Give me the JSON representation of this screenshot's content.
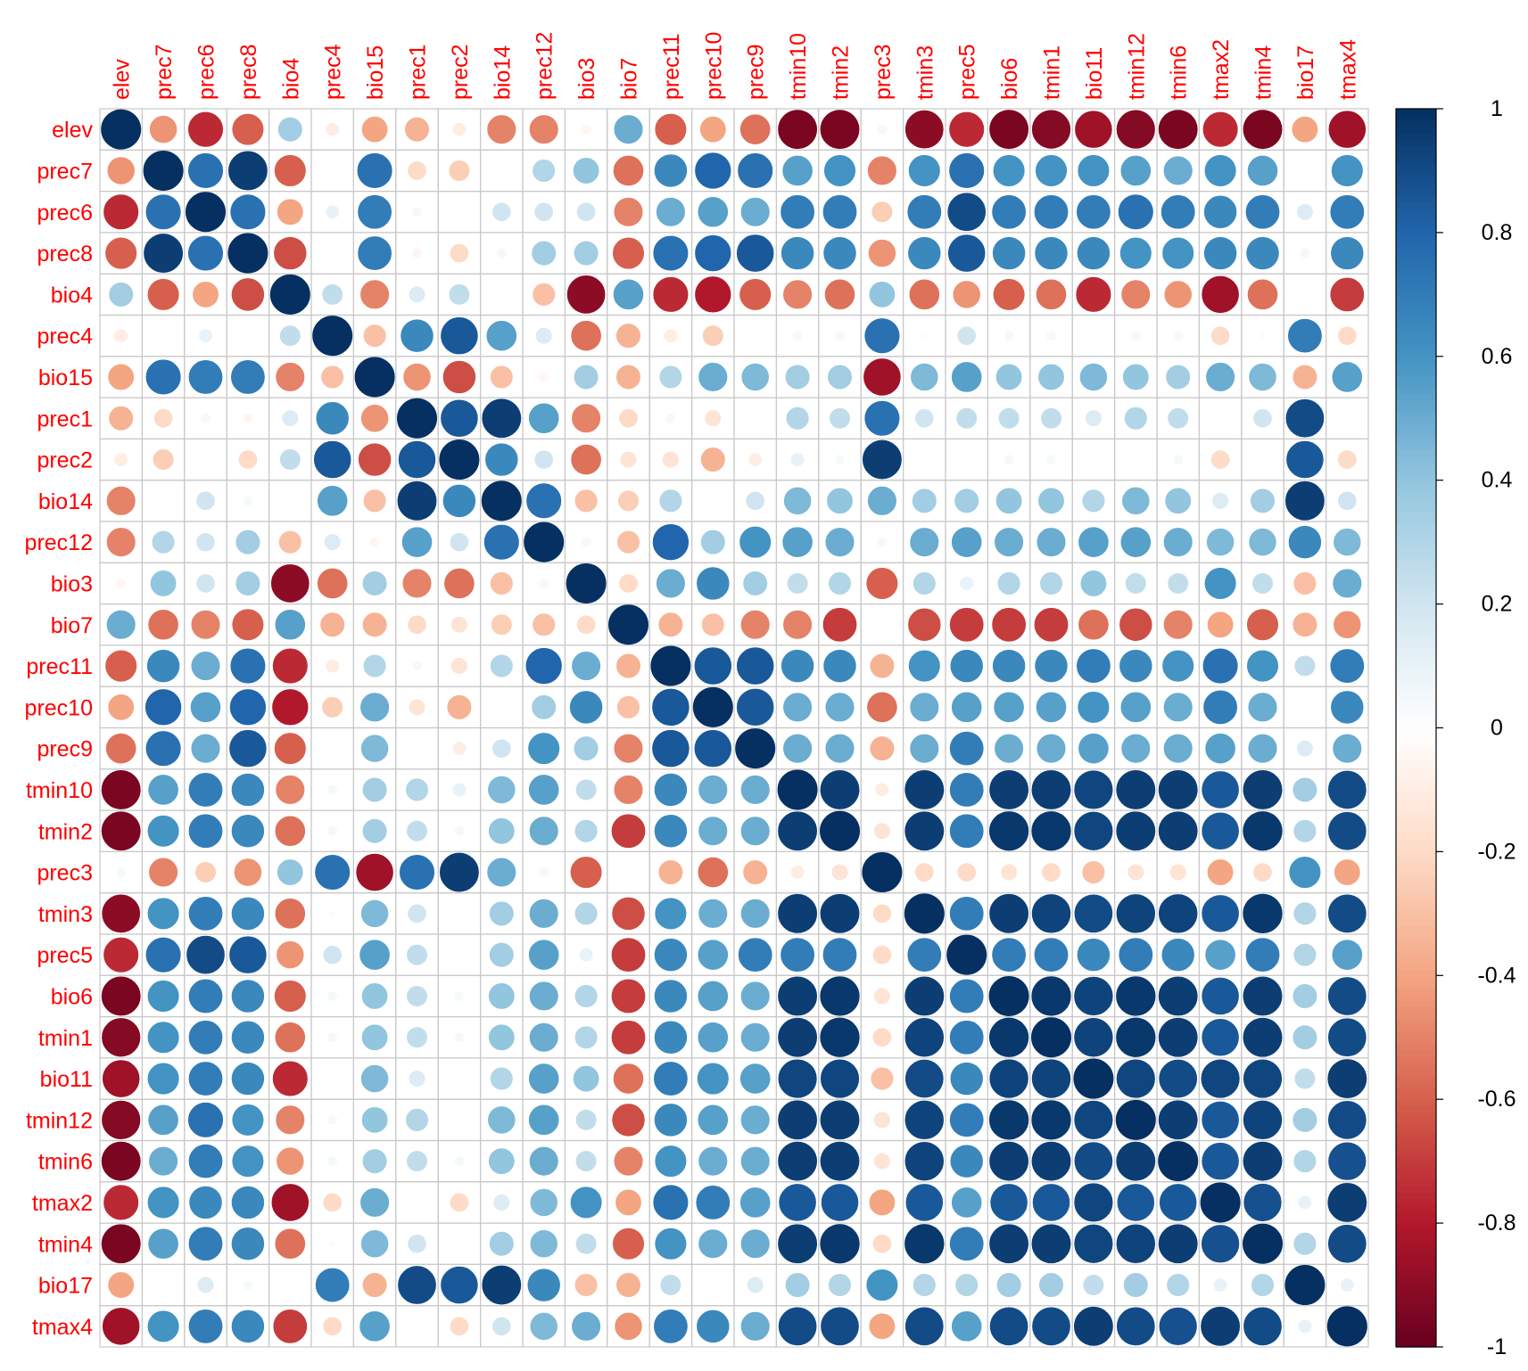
{
  "chart_data": {
    "type": "correlation",
    "variables": [
      "elev",
      "prec7",
      "prec6",
      "prec8",
      "bio4",
      "prec4",
      "bio15",
      "prec1",
      "prec2",
      "bio14",
      "prec12",
      "bio3",
      "bio7",
      "prec11",
      "prec10",
      "prec9",
      "tmin10",
      "tmin2",
      "prec3",
      "tmin3",
      "prec5",
      "bio6",
      "tmin1",
      "bio11",
      "tmin12",
      "tmin6",
      "tmax2",
      "tmin4",
      "bio17",
      "tmax4"
    ],
    "matrix": [
      [
        1,
        -0.45,
        -0.75,
        -0.6,
        0.35,
        -0.1,
        -0.4,
        -0.35,
        -0.1,
        -0.5,
        -0.5,
        -0.05,
        0.5,
        -0.6,
        -0.4,
        -0.55,
        -0.95,
        -0.95,
        0.05,
        -0.9,
        -0.75,
        -0.95,
        -0.92,
        -0.85,
        -0.92,
        -0.95,
        -0.75,
        -0.95,
        -0.4,
        -0.85
      ],
      [
        -0.45,
        1,
        0.75,
        0.95,
        -0.6,
        0,
        0.75,
        -0.2,
        -0.25,
        0,
        0.3,
        0.4,
        -0.55,
        0.65,
        0.8,
        0.75,
        0.55,
        0.6,
        -0.5,
        0.6,
        0.75,
        0.6,
        0.6,
        0.6,
        0.55,
        0.5,
        0.6,
        0.55,
        0,
        0.6
      ],
      [
        -0.75,
        0.75,
        1,
        0.75,
        -0.4,
        0.1,
        0.7,
        0.05,
        0,
        0.2,
        0.2,
        0.2,
        -0.5,
        0.5,
        0.55,
        0.5,
        0.7,
        0.7,
        -0.25,
        0.7,
        0.9,
        0.7,
        0.7,
        0.7,
        0.75,
        0.7,
        0.65,
        0.7,
        0.15,
        0.7
      ],
      [
        -0.6,
        0.95,
        0.75,
        1,
        -0.65,
        0,
        0.7,
        -0.05,
        -0.2,
        0.05,
        0.35,
        0.35,
        -0.6,
        0.75,
        0.8,
        0.85,
        0.65,
        0.65,
        -0.45,
        0.65,
        0.85,
        0.65,
        0.65,
        0.65,
        0.6,
        0.6,
        0.65,
        0.65,
        0.05,
        0.65
      ],
      [
        0.35,
        -0.6,
        -0.4,
        -0.65,
        1,
        0.25,
        -0.5,
        0.15,
        0.25,
        0,
        -0.3,
        -0.9,
        0.55,
        -0.75,
        -0.8,
        -0.6,
        -0.5,
        -0.55,
        0.4,
        -0.55,
        -0.45,
        -0.6,
        -0.55,
        -0.75,
        -0.5,
        -0.45,
        -0.85,
        -0.55,
        0,
        -0.7
      ],
      [
        -0.1,
        0,
        0.1,
        0,
        0.25,
        1,
        -0.3,
        0.65,
        0.85,
        0.55,
        0.15,
        -0.55,
        -0.35,
        -0.1,
        -0.25,
        0,
        0.05,
        0.05,
        0.75,
        0.02,
        0.2,
        0.05,
        0.05,
        0,
        0.05,
        0.05,
        -0.2,
        0.02,
        0.7,
        -0.2
      ],
      [
        -0.4,
        0.75,
        0.7,
        0.7,
        -0.5,
        -0.3,
        1,
        -0.45,
        -0.65,
        -0.3,
        -0.05,
        0.35,
        -0.35,
        0.3,
        0.5,
        0.45,
        0.35,
        0.35,
        -0.85,
        0.45,
        0.55,
        0.4,
        0.4,
        0.45,
        0.4,
        0.35,
        0.5,
        0.45,
        -0.35,
        0.55
      ],
      [
        -0.35,
        -0.2,
        0.05,
        -0.05,
        0.15,
        0.65,
        -0.45,
        1,
        0.85,
        0.95,
        0.55,
        -0.5,
        -0.2,
        0.05,
        -0.15,
        0,
        0.3,
        0.25,
        0.75,
        0.2,
        0.25,
        0.25,
        0.25,
        0.15,
        0.3,
        0.25,
        0,
        0.2,
        0.9,
        0
      ],
      [
        -0.1,
        -0.25,
        0,
        -0.2,
        0.25,
        0.85,
        -0.65,
        0.85,
        1,
        0.65,
        0.2,
        -0.55,
        -0.15,
        -0.15,
        -0.35,
        -0.1,
        0.1,
        0.05,
        0.95,
        0,
        0,
        0.05,
        0.05,
        0,
        0,
        0.05,
        -0.2,
        0,
        0.85,
        -0.2
      ],
      [
        -0.5,
        0,
        0.2,
        0.05,
        0,
        0.55,
        -0.3,
        0.95,
        0.65,
        1,
        0.75,
        -0.3,
        -0.25,
        0.3,
        0,
        0.2,
        0.45,
        0.4,
        0.5,
        0.35,
        0.35,
        0.4,
        0.4,
        0.3,
        0.45,
        0.4,
        0.15,
        0.35,
        0.95,
        0.2
      ],
      [
        -0.5,
        0.3,
        0.2,
        0.35,
        -0.3,
        0.15,
        -0.05,
        0.55,
        0.2,
        0.75,
        1,
        0.05,
        -0.3,
        0.8,
        0.35,
        0.6,
        0.55,
        0.5,
        0.05,
        0.5,
        0.55,
        0.5,
        0.5,
        0.55,
        0.55,
        0.5,
        0.45,
        0.45,
        0.65,
        0.45
      ],
      [
        -0.05,
        0.4,
        0.2,
        0.35,
        -0.9,
        -0.55,
        0.35,
        -0.5,
        -0.55,
        -0.3,
        0.05,
        1,
        -0.2,
        0.5,
        0.65,
        0.35,
        0.25,
        0.3,
        -0.6,
        0.3,
        0.1,
        0.3,
        0.3,
        0.4,
        0.25,
        0.25,
        0.6,
        0.25,
        -0.3,
        0.5
      ],
      [
        0.5,
        -0.55,
        -0.5,
        -0.6,
        0.55,
        -0.35,
        -0.35,
        -0.2,
        -0.15,
        -0.25,
        -0.3,
        -0.2,
        1,
        -0.35,
        -0.3,
        -0.5,
        -0.5,
        -0.7,
        0,
        -0.65,
        -0.7,
        -0.7,
        -0.7,
        -0.55,
        -0.65,
        -0.5,
        -0.4,
        -0.6,
        -0.35,
        -0.45
      ],
      [
        -0.6,
        0.65,
        0.5,
        0.75,
        -0.75,
        -0.1,
        0.3,
        0.05,
        -0.15,
        0.3,
        0.8,
        0.5,
        -0.35,
        1,
        0.85,
        0.85,
        0.65,
        0.65,
        -0.35,
        0.6,
        0.65,
        0.65,
        0.65,
        0.7,
        0.65,
        0.6,
        0.75,
        0.6,
        0.25,
        0.7
      ],
      [
        -0.4,
        0.8,
        0.55,
        0.8,
        -0.8,
        -0.25,
        0.5,
        -0.15,
        -0.35,
        0,
        0.35,
        0.65,
        -0.3,
        0.85,
        1,
        0.85,
        0.5,
        0.5,
        -0.55,
        0.5,
        0.55,
        0.55,
        0.55,
        0.6,
        0.55,
        0.5,
        0.7,
        0.5,
        0,
        0.65
      ],
      [
        -0.55,
        0.75,
        0.5,
        0.85,
        -0.6,
        0,
        0.45,
        0,
        -0.1,
        0.2,
        0.6,
        0.35,
        -0.5,
        0.85,
        0.85,
        1,
        0.5,
        0.5,
        -0.35,
        0.5,
        0.7,
        0.5,
        0.5,
        0.55,
        0.5,
        0.5,
        0.55,
        0.5,
        0.15,
        0.5
      ],
      [
        -0.95,
        0.55,
        0.7,
        0.65,
        -0.5,
        0.05,
        0.35,
        0.3,
        0.1,
        0.45,
        0.55,
        0.25,
        -0.5,
        0.65,
        0.5,
        0.5,
        1,
        0.95,
        -0.1,
        0.95,
        0.7,
        0.95,
        0.95,
        0.92,
        0.95,
        0.95,
        0.85,
        0.95,
        0.35,
        0.9
      ],
      [
        -0.95,
        0.6,
        0.7,
        0.65,
        -0.55,
        0.05,
        0.35,
        0.25,
        0.05,
        0.4,
        0.5,
        0.3,
        -0.7,
        0.65,
        0.5,
        0.5,
        0.95,
        1,
        -0.15,
        0.95,
        0.7,
        0.97,
        0.97,
        0.92,
        0.95,
        0.95,
        0.85,
        0.97,
        0.3,
        0.9
      ],
      [
        0.05,
        -0.5,
        -0.25,
        -0.45,
        0.4,
        0.75,
        -0.85,
        0.75,
        0.95,
        0.5,
        0.05,
        -0.6,
        0,
        -0.35,
        -0.55,
        -0.35,
        -0.1,
        -0.15,
        1,
        -0.2,
        -0.2,
        -0.15,
        -0.2,
        -0.3,
        -0.15,
        -0.15,
        -0.4,
        -0.2,
        0.6,
        -0.4
      ],
      [
        -0.9,
        0.6,
        0.7,
        0.65,
        -0.55,
        0.02,
        0.45,
        0.2,
        0,
        0.35,
        0.5,
        0.3,
        -0.65,
        0.6,
        0.5,
        0.5,
        0.95,
        0.95,
        -0.2,
        1,
        0.7,
        0.95,
        0.93,
        0.9,
        0.93,
        0.93,
        0.85,
        0.97,
        0.3,
        0.9
      ],
      [
        -0.75,
        0.75,
        0.9,
        0.85,
        -0.45,
        0.2,
        0.55,
        0.25,
        0,
        0.35,
        0.55,
        0.1,
        -0.7,
        0.65,
        0.55,
        0.7,
        0.7,
        0.7,
        -0.2,
        0.7,
        1,
        0.7,
        0.7,
        0.65,
        0.7,
        0.65,
        0.55,
        0.7,
        0.3,
        0.55
      ],
      [
        -0.95,
        0.6,
        0.7,
        0.65,
        -0.6,
        0.05,
        0.4,
        0.25,
        0.05,
        0.4,
        0.5,
        0.3,
        -0.7,
        0.65,
        0.55,
        0.5,
        0.95,
        0.97,
        -0.15,
        0.95,
        0.7,
        1,
        0.97,
        0.93,
        0.97,
        0.95,
        0.85,
        0.95,
        0.35,
        0.9
      ],
      [
        -0.92,
        0.6,
        0.7,
        0.65,
        -0.55,
        0.05,
        0.4,
        0.25,
        0.05,
        0.4,
        0.5,
        0.3,
        -0.7,
        0.65,
        0.55,
        0.5,
        0.95,
        0.97,
        -0.2,
        0.93,
        0.7,
        0.97,
        1,
        0.93,
        0.97,
        0.95,
        0.85,
        0.95,
        0.35,
        0.9
      ],
      [
        -0.85,
        0.6,
        0.7,
        0.65,
        -0.75,
        0,
        0.45,
        0.15,
        0,
        0.3,
        0.55,
        0.4,
        -0.55,
        0.7,
        0.6,
        0.55,
        0.92,
        0.92,
        -0.3,
        0.9,
        0.65,
        0.93,
        0.93,
        1,
        0.92,
        0.9,
        0.92,
        0.92,
        0.25,
        0.95
      ],
      [
        -0.92,
        0.55,
        0.75,
        0.6,
        -0.5,
        0.05,
        0.4,
        0.3,
        0,
        0.45,
        0.55,
        0.25,
        -0.65,
        0.65,
        0.55,
        0.5,
        0.95,
        0.95,
        -0.15,
        0.93,
        0.7,
        0.97,
        0.97,
        0.92,
        1,
        0.95,
        0.85,
        0.93,
        0.35,
        0.9
      ],
      [
        -0.95,
        0.5,
        0.7,
        0.6,
        -0.45,
        0.05,
        0.35,
        0.25,
        0.05,
        0.4,
        0.5,
        0.25,
        -0.5,
        0.6,
        0.5,
        0.5,
        0.95,
        0.95,
        -0.15,
        0.93,
        0.65,
        0.95,
        0.95,
        0.9,
        0.95,
        1,
        0.85,
        0.95,
        0.3,
        0.88
      ],
      [
        -0.75,
        0.6,
        0.65,
        0.65,
        -0.85,
        -0.2,
        0.5,
        0,
        -0.2,
        0.15,
        0.45,
        0.6,
        -0.4,
        0.75,
        0.7,
        0.55,
        0.85,
        0.85,
        -0.4,
        0.85,
        0.55,
        0.85,
        0.85,
        0.92,
        0.85,
        0.85,
        1,
        0.88,
        0.1,
        0.95
      ],
      [
        -0.95,
        0.55,
        0.7,
        0.65,
        -0.55,
        0.02,
        0.45,
        0.2,
        0,
        0.35,
        0.45,
        0.25,
        -0.6,
        0.6,
        0.5,
        0.5,
        0.95,
        0.97,
        -0.2,
        0.97,
        0.7,
        0.95,
        0.95,
        0.92,
        0.93,
        0.95,
        0.88,
        1,
        0.3,
        0.9
      ],
      [
        -0.4,
        0,
        0.15,
        0.05,
        0,
        0.7,
        -0.35,
        0.9,
        0.85,
        0.95,
        0.65,
        -0.3,
        -0.35,
        0.25,
        0,
        0.15,
        0.35,
        0.3,
        0.6,
        0.3,
        0.3,
        0.35,
        0.35,
        0.25,
        0.35,
        0.3,
        0.1,
        0.3,
        1,
        0.1
      ],
      [
        -0.85,
        0.6,
        0.7,
        0.65,
        -0.7,
        -0.2,
        0.55,
        0,
        -0.2,
        0.2,
        0.45,
        0.5,
        -0.45,
        0.7,
        0.65,
        0.5,
        0.9,
        0.9,
        -0.4,
        0.9,
        0.55,
        0.9,
        0.9,
        0.95,
        0.9,
        0.88,
        0.95,
        0.9,
        0.1,
        1
      ]
    ],
    "colors": [
      "#67001F",
      "#B2182B",
      "#D6604D",
      "#F4A582",
      "#FDDBC7",
      "#FFFFFF",
      "#D1E5F0",
      "#92C5DE",
      "#4393C3",
      "#2166AC",
      "#053061"
    ],
    "label_color": "#FF0000",
    "clim": [
      -1,
      1
    ],
    "colorbar_ticks": [
      -1,
      -0.8,
      -0.6,
      -0.4,
      -0.2,
      0,
      0.2,
      0.4,
      0.6,
      0.8,
      1
    ]
  }
}
